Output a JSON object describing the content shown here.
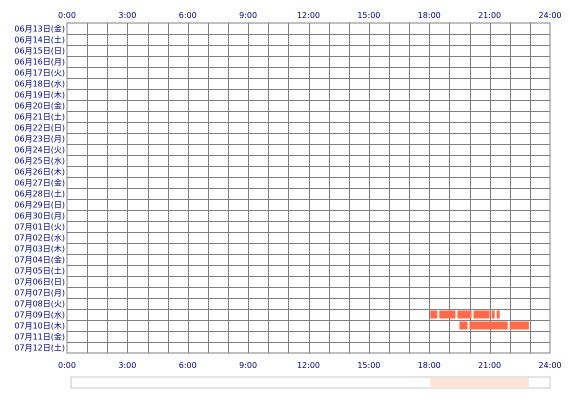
{
  "chart_data": {
    "type": "timeline",
    "title": "",
    "xlabel": "",
    "ylabel": "",
    "x_ticks": [
      "0:00",
      "3:00",
      "6:00",
      "9:00",
      "12:00",
      "15:00",
      "18:00",
      "21:00",
      "24:00"
    ],
    "x_range_hours": [
      0,
      24
    ],
    "x_grid_step_hours": 1,
    "rows": [
      "06月13日(金)",
      "06月14日(土)",
      "06月15日(日)",
      "06月16日(月)",
      "06月17日(火)",
      "06月18日(水)",
      "06月19日(木)",
      "06月20日(金)",
      "06月21日(土)",
      "06月22日(日)",
      "06月23日(月)",
      "06月24日(火)",
      "06月25日(水)",
      "06月26日(木)",
      "06月27日(金)",
      "06月28日(土)",
      "06月29日(日)",
      "06月30日(月)",
      "07月01日(火)",
      "07月02日(水)",
      "07月03日(木)",
      "07月04日(金)",
      "07月05日(土)",
      "07月06日(日)",
      "07月07日(月)",
      "07月08日(火)",
      "07月09日(水)",
      "07月10日(木)",
      "07月11日(金)",
      "07月12日(土)"
    ],
    "series": [
      {
        "color": "#ff6a4a",
        "segments": [
          {
            "row": "07月09日(水)",
            "start": 18.05,
            "end": 18.4
          },
          {
            "row": "07月09日(水)",
            "start": 18.5,
            "end": 19.3
          },
          {
            "row": "07月09日(水)",
            "start": 19.4,
            "end": 20.1
          },
          {
            "row": "07月09日(水)",
            "start": 20.2,
            "end": 21.0
          },
          {
            "row": "07月09日(水)",
            "start": 21.1,
            "end": 21.25
          },
          {
            "row": "07月09日(水)",
            "start": 21.35,
            "end": 21.5
          },
          {
            "row": "07月10日(木)",
            "start": 19.5,
            "end": 19.9
          },
          {
            "row": "07月10日(木)",
            "start": 20.0,
            "end": 21.9
          },
          {
            "row": "07月10日(木)",
            "start": 22.0,
            "end": 22.95
          }
        ]
      }
    ],
    "summary_bar": {
      "segments": [
        {
          "start": 18.05,
          "end": 22.95,
          "color": "#ffe5d6"
        }
      ]
    },
    "colors": {
      "grid": "#808080",
      "label": "#00008b",
      "activity": "#ff6a4a"
    }
  }
}
